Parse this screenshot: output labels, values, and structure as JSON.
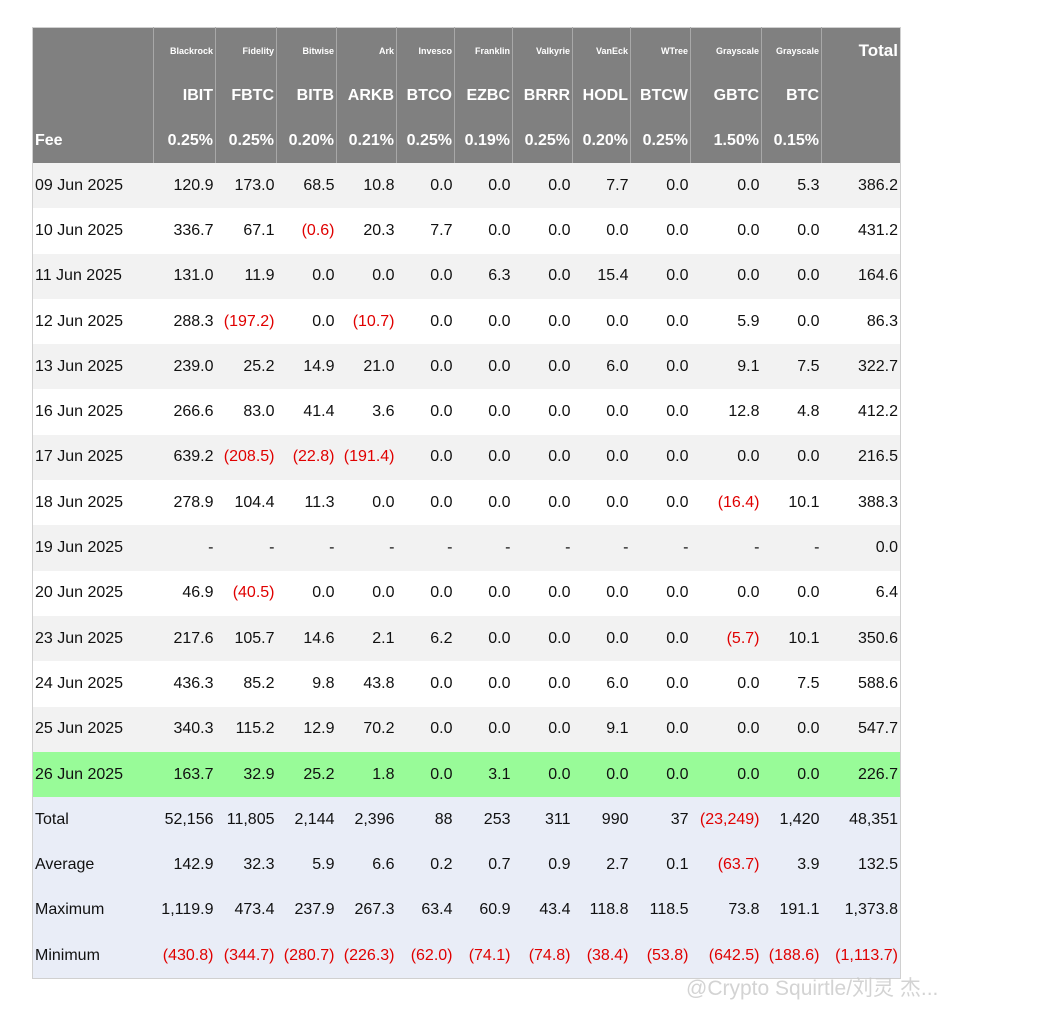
{
  "table": {
    "issuers": [
      "Blackrock",
      "Fidelity",
      "Bitwise",
      "Ark",
      "Invesco",
      "Franklin",
      "Valkyrie",
      "VanEck",
      "WTree",
      "Grayscale",
      "Grayscale"
    ],
    "total_label": "Total",
    "tickers": [
      "IBIT",
      "FBTC",
      "BITB",
      "ARKB",
      "BTCO",
      "EZBC",
      "BRRR",
      "HODL",
      "BTCW",
      "GBTC",
      "BTC"
    ],
    "fee_label": "Fee",
    "fees": [
      "0.25%",
      "0.25%",
      "0.20%",
      "0.21%",
      "0.25%",
      "0.19%",
      "0.25%",
      "0.20%",
      "0.25%",
      "1.50%",
      "0.15%"
    ],
    "highlight_row": 13,
    "rows": [
      {
        "date": "09 Jun 2025",
        "values": [
          "120.9",
          "173.0",
          "68.5",
          "10.8",
          "0.0",
          "0.0",
          "0.0",
          "7.7",
          "0.0",
          "0.0",
          "5.3",
          "386.2"
        ]
      },
      {
        "date": "10 Jun 2025",
        "values": [
          "336.7",
          "67.1",
          "(0.6)",
          "20.3",
          "7.7",
          "0.0",
          "0.0",
          "0.0",
          "0.0",
          "0.0",
          "0.0",
          "431.2"
        ]
      },
      {
        "date": "11 Jun 2025",
        "values": [
          "131.0",
          "11.9",
          "0.0",
          "0.0",
          "0.0",
          "6.3",
          "0.0",
          "15.4",
          "0.0",
          "0.0",
          "0.0",
          "164.6"
        ]
      },
      {
        "date": "12 Jun 2025",
        "values": [
          "288.3",
          "(197.2)",
          "0.0",
          "(10.7)",
          "0.0",
          "0.0",
          "0.0",
          "0.0",
          "0.0",
          "5.9",
          "0.0",
          "86.3"
        ]
      },
      {
        "date": "13 Jun 2025",
        "values": [
          "239.0",
          "25.2",
          "14.9",
          "21.0",
          "0.0",
          "0.0",
          "0.0",
          "6.0",
          "0.0",
          "9.1",
          "7.5",
          "322.7"
        ]
      },
      {
        "date": "16 Jun 2025",
        "values": [
          "266.6",
          "83.0",
          "41.4",
          "3.6",
          "0.0",
          "0.0",
          "0.0",
          "0.0",
          "0.0",
          "12.8",
          "4.8",
          "412.2"
        ]
      },
      {
        "date": "17 Jun 2025",
        "values": [
          "639.2",
          "(208.5)",
          "(22.8)",
          "(191.4)",
          "0.0",
          "0.0",
          "0.0",
          "0.0",
          "0.0",
          "0.0",
          "0.0",
          "216.5"
        ]
      },
      {
        "date": "18 Jun 2025",
        "values": [
          "278.9",
          "104.4",
          "11.3",
          "0.0",
          "0.0",
          "0.0",
          "0.0",
          "0.0",
          "0.0",
          "(16.4)",
          "10.1",
          "388.3"
        ]
      },
      {
        "date": "19 Jun 2025",
        "values": [
          "-",
          "-",
          "-",
          "-",
          "-",
          "-",
          "-",
          "-",
          "-",
          "-",
          "-",
          "0.0"
        ]
      },
      {
        "date": "20 Jun 2025",
        "values": [
          "46.9",
          "(40.5)",
          "0.0",
          "0.0",
          "0.0",
          "0.0",
          "0.0",
          "0.0",
          "0.0",
          "0.0",
          "0.0",
          "6.4"
        ]
      },
      {
        "date": "23 Jun 2025",
        "values": [
          "217.6",
          "105.7",
          "14.6",
          "2.1",
          "6.2",
          "0.0",
          "0.0",
          "0.0",
          "0.0",
          "(5.7)",
          "10.1",
          "350.6"
        ]
      },
      {
        "date": "24 Jun 2025",
        "values": [
          "436.3",
          "85.2",
          "9.8",
          "43.8",
          "0.0",
          "0.0",
          "0.0",
          "6.0",
          "0.0",
          "0.0",
          "7.5",
          "588.6"
        ]
      },
      {
        "date": "25 Jun 2025",
        "values": [
          "340.3",
          "115.2",
          "12.9",
          "70.2",
          "0.0",
          "0.0",
          "0.0",
          "9.1",
          "0.0",
          "0.0",
          "0.0",
          "547.7"
        ]
      },
      {
        "date": "26 Jun 2025",
        "values": [
          "163.7",
          "32.9",
          "25.2",
          "1.8",
          "0.0",
          "3.1",
          "0.0",
          "0.0",
          "0.0",
          "0.0",
          "0.0",
          "226.7"
        ]
      }
    ],
    "summary": [
      {
        "label": "Total",
        "values": [
          "52,156",
          "11,805",
          "2,144",
          "2,396",
          "88",
          "253",
          "311",
          "990",
          "37",
          "(23,249)",
          "1,420",
          "48,351"
        ]
      },
      {
        "label": "Average",
        "values": [
          "142.9",
          "32.3",
          "5.9",
          "6.6",
          "0.2",
          "0.7",
          "0.9",
          "2.7",
          "0.1",
          "(63.7)",
          "3.9",
          "132.5"
        ]
      },
      {
        "label": "Maximum",
        "values": [
          "1,119.9",
          "473.4",
          "237.9",
          "267.3",
          "63.4",
          "60.9",
          "43.4",
          "118.8",
          "118.5",
          "73.8",
          "191.1",
          "1,373.8"
        ]
      },
      {
        "label": "Minimum",
        "values": [
          "(430.8)",
          "(344.7)",
          "(280.7)",
          "(226.3)",
          "(62.0)",
          "(74.1)",
          "(74.8)",
          "(38.4)",
          "(53.8)",
          "(642.5)",
          "(188.6)",
          "(1,113.7)"
        ]
      }
    ]
  },
  "watermark": "@Crypto Squirtle/刘灵 杰..."
}
